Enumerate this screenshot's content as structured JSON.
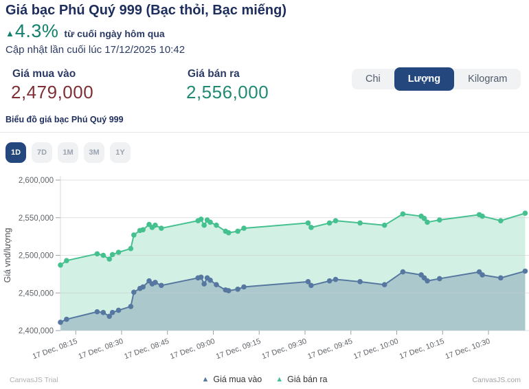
{
  "header": {
    "title": "Giá bạc Phú Quý 999 (Bạc thỏi, Bạc miếng)",
    "change_arrow": "▲",
    "change_percent": "4.3%",
    "change_label": "từ cuối ngày hôm qua",
    "updated": "Cập nhật lần cuối lúc 17/12/2025 10:42"
  },
  "prices": {
    "buy_label": "Giá mua vào",
    "buy_value": "2,479,000",
    "sell_label": "Giá bán ra",
    "sell_value": "2,556,000"
  },
  "unit_toggle": {
    "options": [
      "Chi",
      "Lượng",
      "Kilogram"
    ],
    "selected": "Lượng"
  },
  "chart_section": {
    "title": "Biểu đồ giá bạc Phú Quý 999"
  },
  "range_buttons": {
    "options": [
      "1D",
      "7D",
      "1M",
      "3M",
      "1Y"
    ],
    "selected": "1D"
  },
  "watermarks": {
    "left": "CanvasJS Trial",
    "right": "CanvasJS.com"
  },
  "colors": {
    "navy": "#1d2d5c",
    "accent_selected": "#24477e",
    "buy_line": "#56779f",
    "sell_line": "#45c08f",
    "buy_price_text": "#7e2f35",
    "sell_price_text": "#208a74",
    "change_text": "#12806c"
  },
  "chart_data": {
    "type": "area",
    "title": "Biểu đồ giá bạc Phú Quý 999",
    "xlabel": "",
    "ylabel": "Giá vnd/lượng",
    "ylim": [
      2400000,
      2600000
    ],
    "grid": true,
    "legend_position": "bottom",
    "y_tick_labels": [
      "2,400,000",
      "2,450,000",
      "2,500,000",
      "2,550,000",
      "2,600,000"
    ],
    "x_tick_labels": [
      {
        "label": "17 Dec, 08:15",
        "time": "08:15"
      },
      {
        "label": "17 Dec, 08:30",
        "time": "08:30"
      },
      {
        "label": "17 Dec, 08:45",
        "time": "08:45"
      },
      {
        "label": "17 Dec, 09:00",
        "time": "09:00"
      },
      {
        "label": "17 Dec, 09:15",
        "time": "09:15"
      },
      {
        "label": "17 Dec, 09:30",
        "time": "09:30"
      },
      {
        "label": "17 Dec, 09:45",
        "time": "09:45"
      },
      {
        "label": "17 Dec, 10:00",
        "time": "10:00"
      },
      {
        "label": "17 Dec, 10:15",
        "time": "10:15"
      },
      {
        "label": "17 Dec, 10:30",
        "time": "10:30"
      }
    ],
    "x": [
      "08:10",
      "08:12",
      "08:22",
      "08:24",
      "08:26",
      "08:27",
      "08:29",
      "08:33",
      "08:34",
      "08:36",
      "08:37",
      "08:39",
      "08:40",
      "08:41",
      "08:43",
      "08:55",
      "08:56",
      "08:57",
      "08:58",
      "08:59",
      "09:01",
      "09:04",
      "09:05",
      "09:08",
      "09:10",
      "09:31",
      "09:32",
      "09:38",
      "09:40",
      "09:48",
      "09:56",
      "10:02",
      "10:08",
      "10:09",
      "10:10",
      "10:14",
      "10:27",
      "10:28",
      "10:34",
      "10:42"
    ],
    "series": [
      {
        "name": "Giá mua vào",
        "color": "#56779f",
        "fill": "rgba(86,119,159,0.32)",
        "values": [
          2411000,
          2415000,
          2425000,
          2424000,
          2419000,
          2424000,
          2427000,
          2432000,
          2451000,
          2456000,
          2458000,
          2466000,
          2462000,
          2464000,
          2460000,
          2470000,
          2471000,
          2462000,
          2470000,
          2467000,
          2461000,
          2454000,
          2453000,
          2455000,
          2458000,
          2465000,
          2460000,
          2466000,
          2468000,
          2465000,
          2461000,
          2478000,
          2474000,
          2470000,
          2466000,
          2469000,
          2478000,
          2474000,
          2470000,
          2479000
        ]
      },
      {
        "name": "Giá bán ra",
        "color": "#45c08f",
        "fill": "rgba(69,192,143,0.24)",
        "values": [
          2487000,
          2493000,
          2502000,
          2500000,
          2495000,
          2501000,
          2504000,
          2509000,
          2527000,
          2533000,
          2534000,
          2541000,
          2537000,
          2540000,
          2536000,
          2546000,
          2548000,
          2540000,
          2547000,
          2544000,
          2540000,
          2532000,
          2530000,
          2532000,
          2536000,
          2543000,
          2537000,
          2543000,
          2546000,
          2543000,
          2540000,
          2555000,
          2552000,
          2549000,
          2544000,
          2547000,
          2554000,
          2552000,
          2546000,
          2556000
        ]
      }
    ]
  }
}
